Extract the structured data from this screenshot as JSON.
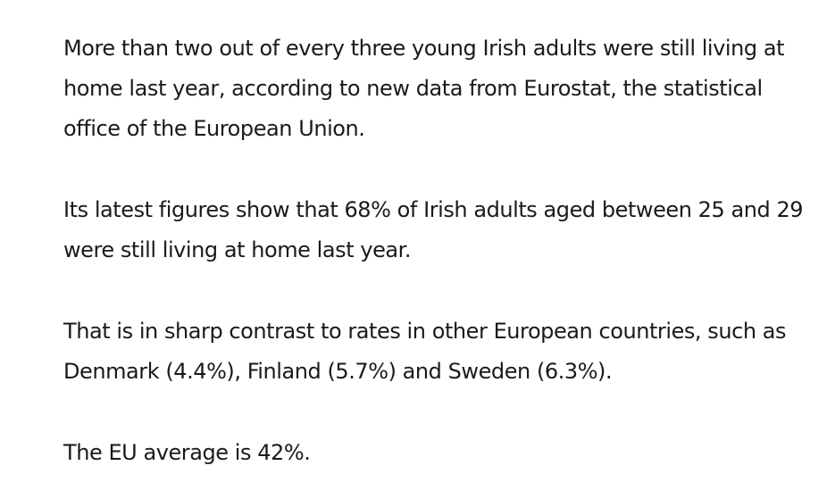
{
  "article": {
    "paragraphs": [
      "More than two out of every three young Irish adults were still living at home last year, according to new data from Eurostat, the statistical office of the European Union.",
      "Its latest figures show that 68% of Irish adults aged between 25 and 29 were still living at home last year.",
      "That is in sharp contrast to rates in other European countries, such as Denmark (4.4%), Finland (5.7%) and Sweden (6.3%).",
      "The EU average is 42%."
    ]
  }
}
